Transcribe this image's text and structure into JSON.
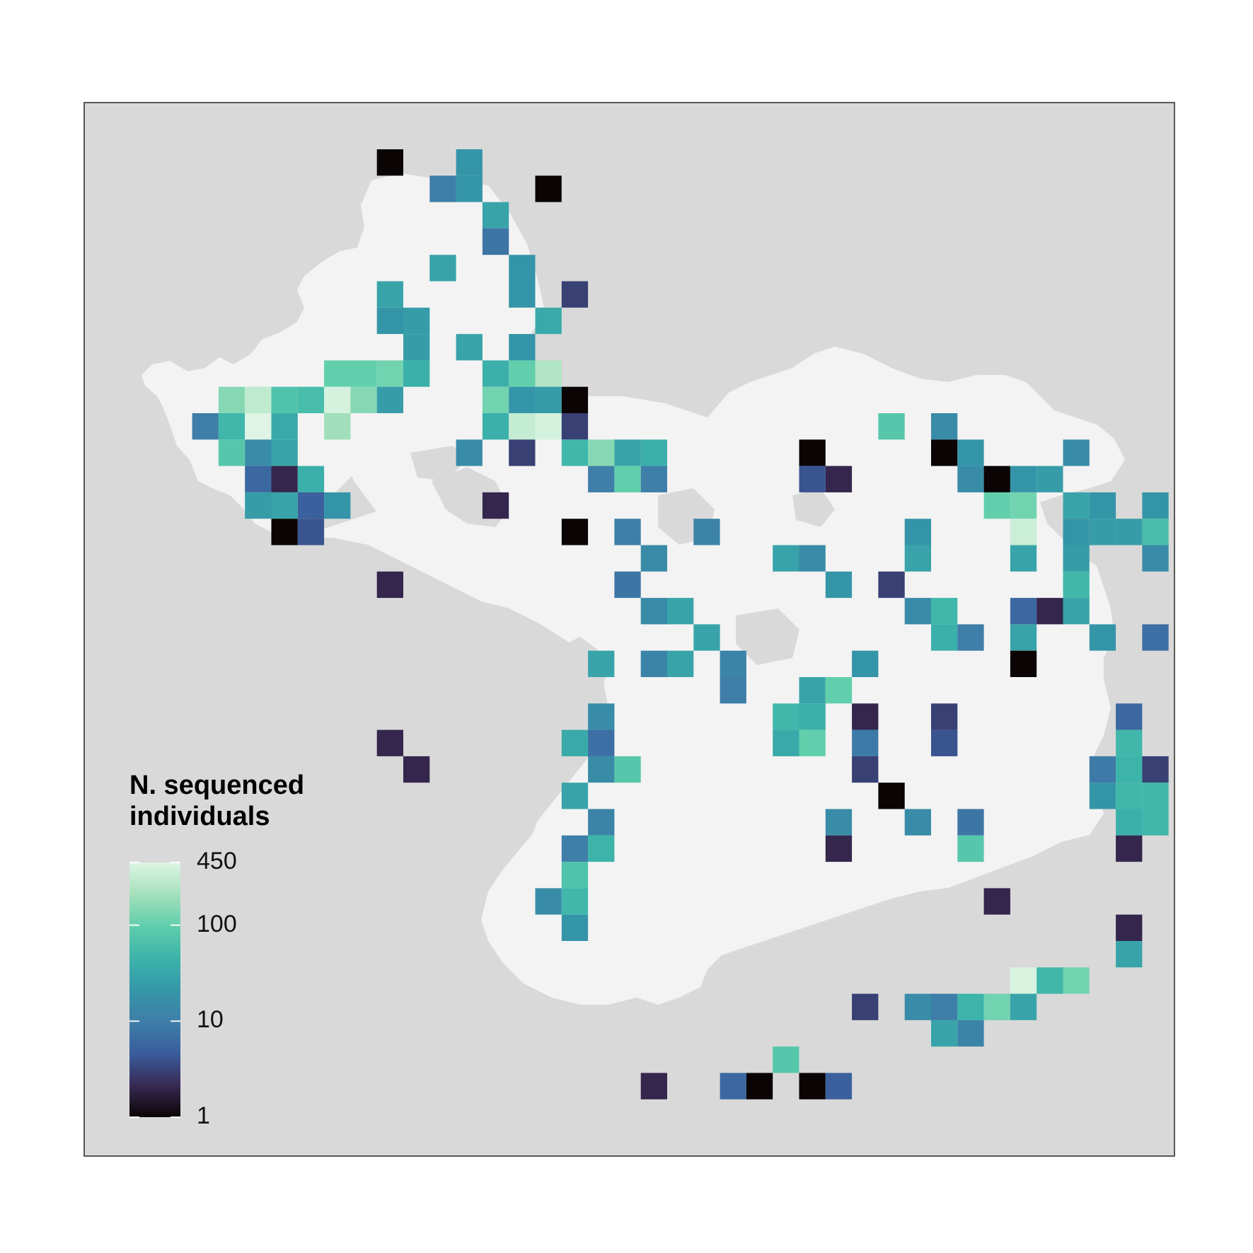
{
  "legend": {
    "title_line1": "N. sequenced",
    "title_line2": "individuals",
    "ticks": [
      "450",
      "100",
      "10",
      "1"
    ],
    "range": [
      1,
      450
    ],
    "scale": "log",
    "color_stops": [
      "#0b0405",
      "#382a54",
      "#395d9c",
      "#3e7ea8",
      "#3497a8",
      "#3cb4aa",
      "#60ceac",
      "#a4e0bb",
      "#def5e5"
    ]
  },
  "colors": {
    "ocean": "#d9d9d9",
    "land": "#f3f3f3",
    "frame": "#333333",
    "page": "#ffffff"
  },
  "map_data": {
    "type": "gridded-heatmap",
    "value_scale": "log",
    "cells": [
      {
        "col": 9,
        "row": 0,
        "v": 1
      },
      {
        "col": 12,
        "row": 0,
        "v": 20
      },
      {
        "col": 11,
        "row": 1,
        "v": 10
      },
      {
        "col": 12,
        "row": 1,
        "v": 20
      },
      {
        "col": 15,
        "row": 1,
        "v": 1
      },
      {
        "col": 13,
        "row": 2,
        "v": 30
      },
      {
        "col": 13,
        "row": 3,
        "v": 8
      },
      {
        "col": 11,
        "row": 4,
        "v": 30
      },
      {
        "col": 14,
        "row": 4,
        "v": 20
      },
      {
        "col": 9,
        "row": 5,
        "v": 30
      },
      {
        "col": 14,
        "row": 5,
        "v": 20
      },
      {
        "col": 16,
        "row": 5,
        "v": 3
      },
      {
        "col": 9,
        "row": 6,
        "v": 20
      },
      {
        "col": 10,
        "row": 6,
        "v": 25
      },
      {
        "col": 15,
        "row": 6,
        "v": 35
      },
      {
        "col": 10,
        "row": 7,
        "v": 25
      },
      {
        "col": 12,
        "row": 7,
        "v": 30
      },
      {
        "col": 14,
        "row": 7,
        "v": 20
      },
      {
        "col": 7,
        "row": 8,
        "v": 100
      },
      {
        "col": 8,
        "row": 8,
        "v": 100
      },
      {
        "col": 9,
        "row": 8,
        "v": 120
      },
      {
        "col": 10,
        "row": 8,
        "v": 40
      },
      {
        "col": 13,
        "row": 8,
        "v": 40
      },
      {
        "col": 14,
        "row": 8,
        "v": 100
      },
      {
        "col": 15,
        "row": 8,
        "v": 250
      },
      {
        "col": 3,
        "row": 9,
        "v": 150
      },
      {
        "col": 4,
        "row": 9,
        "v": 300
      },
      {
        "col": 5,
        "row": 9,
        "v": 70
      },
      {
        "col": 6,
        "row": 9,
        "v": 60
      },
      {
        "col": 7,
        "row": 9,
        "v": 400
      },
      {
        "col": 8,
        "row": 9,
        "v": 150
      },
      {
        "col": 9,
        "row": 9,
        "v": 25
      },
      {
        "col": 13,
        "row": 9,
        "v": 120
      },
      {
        "col": 14,
        "row": 9,
        "v": 20
      },
      {
        "col": 15,
        "row": 9,
        "v": 25
      },
      {
        "col": 16,
        "row": 9,
        "v": 1
      },
      {
        "col": 2,
        "row": 10,
        "v": 10
      },
      {
        "col": 3,
        "row": 10,
        "v": 50
      },
      {
        "col": 4,
        "row": 10,
        "v": 450
      },
      {
        "col": 5,
        "row": 10,
        "v": 35
      },
      {
        "col": 7,
        "row": 10,
        "v": 200
      },
      {
        "col": 13,
        "row": 10,
        "v": 40
      },
      {
        "col": 14,
        "row": 10,
        "v": 320
      },
      {
        "col": 15,
        "row": 10,
        "v": 400
      },
      {
        "col": 16,
        "row": 10,
        "v": 3
      },
      {
        "col": 28,
        "row": 10,
        "v": 80
      },
      {
        "col": 30,
        "row": 10,
        "v": 15
      },
      {
        "col": 3,
        "row": 11,
        "v": 80
      },
      {
        "col": 4,
        "row": 11,
        "v": 15
      },
      {
        "col": 5,
        "row": 11,
        "v": 30
      },
      {
        "col": 12,
        "row": 11,
        "v": 15
      },
      {
        "col": 14,
        "row": 11,
        "v": 3
      },
      {
        "col": 16,
        "row": 11,
        "v": 50
      },
      {
        "col": 17,
        "row": 11,
        "v": 150
      },
      {
        "col": 18,
        "row": 11,
        "v": 30
      },
      {
        "col": 19,
        "row": 11,
        "v": 40
      },
      {
        "col": 25,
        "row": 11,
        "v": 1
      },
      {
        "col": 30,
        "row": 11,
        "v": 1
      },
      {
        "col": 31,
        "row": 11,
        "v": 20
      },
      {
        "col": 35,
        "row": 11,
        "v": 15
      },
      {
        "col": 4,
        "row": 12,
        "v": 6
      },
      {
        "col": 5,
        "row": 12,
        "v": 2
      },
      {
        "col": 6,
        "row": 12,
        "v": 40
      },
      {
        "col": 17,
        "row": 12,
        "v": 10
      },
      {
        "col": 18,
        "row": 12,
        "v": 100
      },
      {
        "col": 19,
        "row": 12,
        "v": 10
      },
      {
        "col": 25,
        "row": 12,
        "v": 4
      },
      {
        "col": 26,
        "row": 12,
        "v": 2
      },
      {
        "col": 31,
        "row": 12,
        "v": 15
      },
      {
        "col": 32,
        "row": 12,
        "v": 1
      },
      {
        "col": 33,
        "row": 12,
        "v": 20
      },
      {
        "col": 34,
        "row": 12,
        "v": 25
      },
      {
        "col": 4,
        "row": 13,
        "v": 25
      },
      {
        "col": 5,
        "row": 13,
        "v": 30
      },
      {
        "col": 6,
        "row": 13,
        "v": 5
      },
      {
        "col": 7,
        "row": 13,
        "v": 20
      },
      {
        "col": 13,
        "row": 13,
        "v": 2
      },
      {
        "col": 32,
        "row": 13,
        "v": 100
      },
      {
        "col": 33,
        "row": 13,
        "v": 120
      },
      {
        "col": 35,
        "row": 13,
        "v": 30
      },
      {
        "col": 36,
        "row": 13,
        "v": 20
      },
      {
        "col": 38,
        "row": 13,
        "v": 20
      },
      {
        "col": 5,
        "row": 14,
        "v": 1
      },
      {
        "col": 6,
        "row": 14,
        "v": 4
      },
      {
        "col": 16,
        "row": 14,
        "v": 1
      },
      {
        "col": 18,
        "row": 14,
        "v": 10
      },
      {
        "col": 21,
        "row": 14,
        "v": 12
      },
      {
        "col": 29,
        "row": 14,
        "v": 20
      },
      {
        "col": 33,
        "row": 14,
        "v": 350
      },
      {
        "col": 35,
        "row": 14,
        "v": 20
      },
      {
        "col": 36,
        "row": 14,
        "v": 25
      },
      {
        "col": 37,
        "row": 14,
        "v": 25
      },
      {
        "col": 38,
        "row": 14,
        "v": 60
      },
      {
        "col": 19,
        "row": 15,
        "v": 15
      },
      {
        "col": 24,
        "row": 15,
        "v": 30
      },
      {
        "col": 25,
        "row": 15,
        "v": 15
      },
      {
        "col": 29,
        "row": 15,
        "v": 30
      },
      {
        "col": 33,
        "row": 15,
        "v": 30
      },
      {
        "col": 35,
        "row": 15,
        "v": 25
      },
      {
        "col": 38,
        "row": 15,
        "v": 15
      },
      {
        "col": 9,
        "row": 16,
        "v": 2
      },
      {
        "col": 18,
        "row": 16,
        "v": 8
      },
      {
        "col": 26,
        "row": 16,
        "v": 20
      },
      {
        "col": 28,
        "row": 16,
        "v": 3
      },
      {
        "col": 35,
        "row": 16,
        "v": 50
      },
      {
        "col": 19,
        "row": 17,
        "v": 15
      },
      {
        "col": 20,
        "row": 17,
        "v": 30
      },
      {
        "col": 29,
        "row": 17,
        "v": 15
      },
      {
        "col": 30,
        "row": 17,
        "v": 50
      },
      {
        "col": 33,
        "row": 17,
        "v": 6
      },
      {
        "col": 34,
        "row": 17,
        "v": 2
      },
      {
        "col": 35,
        "row": 17,
        "v": 30
      },
      {
        "col": 21,
        "row": 18,
        "v": 30
      },
      {
        "col": 30,
        "row": 18,
        "v": 40
      },
      {
        "col": 31,
        "row": 18,
        "v": 10
      },
      {
        "col": 33,
        "row": 18,
        "v": 30
      },
      {
        "col": 36,
        "row": 18,
        "v": 20
      },
      {
        "col": 38,
        "row": 18,
        "v": 7
      },
      {
        "col": 17,
        "row": 19,
        "v": 30
      },
      {
        "col": 19,
        "row": 19,
        "v": 12
      },
      {
        "col": 20,
        "row": 19,
        "v": 30
      },
      {
        "col": 22,
        "row": 19,
        "v": 12
      },
      {
        "col": 27,
        "row": 19,
        "v": 20
      },
      {
        "col": 33,
        "row": 19,
        "v": 1
      },
      {
        "col": 22,
        "row": 20,
        "v": 10
      },
      {
        "col": 25,
        "row": 20,
        "v": 30
      },
      {
        "col": 26,
        "row": 20,
        "v": 100
      },
      {
        "col": 17,
        "row": 21,
        "v": 15
      },
      {
        "col": 24,
        "row": 21,
        "v": 50
      },
      {
        "col": 25,
        "row": 21,
        "v": 40
      },
      {
        "col": 27,
        "row": 21,
        "v": 2
      },
      {
        "col": 30,
        "row": 21,
        "v": 3
      },
      {
        "col": 37,
        "row": 21,
        "v": 6
      },
      {
        "col": 9,
        "row": 22,
        "v": 2
      },
      {
        "col": 16,
        "row": 22,
        "v": 35
      },
      {
        "col": 17,
        "row": 22,
        "v": 7
      },
      {
        "col": 24,
        "row": 22,
        "v": 35
      },
      {
        "col": 25,
        "row": 22,
        "v": 100
      },
      {
        "col": 27,
        "row": 22,
        "v": 9
      },
      {
        "col": 30,
        "row": 22,
        "v": 4
      },
      {
        "col": 37,
        "row": 22,
        "v": 50
      },
      {
        "col": 10,
        "row": 23,
        "v": 2
      },
      {
        "col": 17,
        "row": 23,
        "v": 15
      },
      {
        "col": 18,
        "row": 23,
        "v": 80
      },
      {
        "col": 27,
        "row": 23,
        "v": 3
      },
      {
        "col": 36,
        "row": 23,
        "v": 9
      },
      {
        "col": 37,
        "row": 23,
        "v": 45
      },
      {
        "col": 38,
        "row": 23,
        "v": 3
      },
      {
        "col": 16,
        "row": 24,
        "v": 30
      },
      {
        "col": 28,
        "row": 24,
        "v": 1
      },
      {
        "col": 36,
        "row": 24,
        "v": 20
      },
      {
        "col": 37,
        "row": 24,
        "v": 50
      },
      {
        "col": 38,
        "row": 24,
        "v": 50
      },
      {
        "col": 17,
        "row": 25,
        "v": 12
      },
      {
        "col": 26,
        "row": 25,
        "v": 15
      },
      {
        "col": 29,
        "row": 25,
        "v": 15
      },
      {
        "col": 31,
        "row": 25,
        "v": 8
      },
      {
        "col": 37,
        "row": 25,
        "v": 40
      },
      {
        "col": 38,
        "row": 25,
        "v": 50
      },
      {
        "col": 16,
        "row": 26,
        "v": 10
      },
      {
        "col": 17,
        "row": 26,
        "v": 45
      },
      {
        "col": 26,
        "row": 26,
        "v": 2
      },
      {
        "col": 31,
        "row": 26,
        "v": 80
      },
      {
        "col": 37,
        "row": 26,
        "v": 2
      },
      {
        "col": 16,
        "row": 27,
        "v": 70
      },
      {
        "col": 15,
        "row": 28,
        "v": 15
      },
      {
        "col": 16,
        "row": 28,
        "v": 50
      },
      {
        "col": 32,
        "row": 28,
        "v": 2
      },
      {
        "col": 16,
        "row": 29,
        "v": 20
      },
      {
        "col": 37,
        "row": 29,
        "v": 2
      },
      {
        "col": 37,
        "row": 30,
        "v": 30
      },
      {
        "col": 33,
        "row": 31,
        "v": 420
      },
      {
        "col": 34,
        "row": 31,
        "v": 50
      },
      {
        "col": 35,
        "row": 31,
        "v": 120
      },
      {
        "col": 27,
        "row": 32,
        "v": 3
      },
      {
        "col": 29,
        "row": 32,
        "v": 15
      },
      {
        "col": 30,
        "row": 32,
        "v": 10
      },
      {
        "col": 31,
        "row": 32,
        "v": 45
      },
      {
        "col": 32,
        "row": 32,
        "v": 120
      },
      {
        "col": 33,
        "row": 32,
        "v": 30
      },
      {
        "col": 30,
        "row": 33,
        "v": 30
      },
      {
        "col": 31,
        "row": 33,
        "v": 12
      },
      {
        "col": 24,
        "row": 34,
        "v": 80
      },
      {
        "col": 19,
        "row": 35,
        "v": 2
      },
      {
        "col": 22,
        "row": 35,
        "v": 6
      },
      {
        "col": 23,
        "row": 35,
        "v": 1
      },
      {
        "col": 25,
        "row": 35,
        "v": 1
      },
      {
        "col": 26,
        "row": 35,
        "v": 5
      }
    ]
  }
}
